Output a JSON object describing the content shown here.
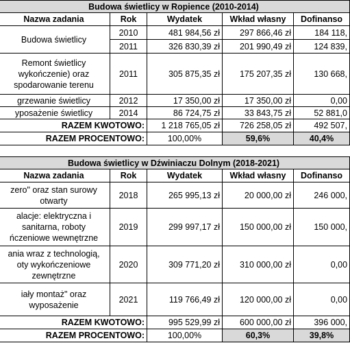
{
  "tables": [
    {
      "title": "Budowa świetlicy w Ropience (2010-2014)",
      "header": [
        "Nazwa zadania",
        "Rok",
        "Wydatek",
        "Wkład własny",
        "Dofinanso"
      ],
      "rows": [
        {
          "name": [
            "Budowa świetlicy"
          ],
          "span": 2,
          "year": "2010",
          "expense": "481 984,56 zł",
          "own": "297 866,46 zł",
          "cofund": "184 118,"
        },
        {
          "year": "2011",
          "expense": "326 830,39 zł",
          "own": "201 990,49 zł",
          "cofund": "124 839,"
        },
        {
          "name": [
            "Remont świetlicy",
            "wykończenie) oraz",
            "spodarowanie terenu"
          ],
          "span": 1,
          "year": "2011",
          "expense": "305 875,35 zł",
          "own": "175 207,35 zł",
          "cofund": "130 668,"
        },
        {
          "name": [
            "grzewanie świetlicy"
          ],
          "span": 1,
          "year": "2012",
          "expense": "17 350,00 zł",
          "own": "17 350,00 zł",
          "cofund": "0,00"
        },
        {
          "name": [
            "yposażenie świetlicy"
          ],
          "span": 1,
          "year": "2014",
          "expense": "86 724,75 zł",
          "own": "33 843,75 zł",
          "cofund": "52 881,0"
        }
      ],
      "total_amount": {
        "label": "RAZEM KWOTOWO:",
        "expense": "1 218 765,05 zł",
        "own": "726 258,05 zł",
        "cofund": "492 507,"
      },
      "total_percent": {
        "label": "RAZEM PROCENTOWO:",
        "expense": "100,00%",
        "own": "59,6%",
        "cofund": "40,4%"
      }
    },
    {
      "title": "Budowa świetlicy w Dźwiniaczu Dolnym (2018-2021)",
      "header": [
        "Nazwa zadania",
        "Rok",
        "Wydatek",
        "Wkład własny",
        "Dofinanso"
      ],
      "rows": [
        {
          "name": [
            "zero\" oraz stan surowy",
            "otwarty"
          ],
          "span": 1,
          "year": "2018",
          "expense": "265 995,13 zł",
          "own": "20 000,00 zł",
          "cofund": "246 000,"
        },
        {
          "name": [
            "alacje: elektryczna i",
            "sanitarna, roboty",
            "ńczeniowe wewnętrzne"
          ],
          "span": 1,
          "year": "2019",
          "expense": "299 997,17 zł",
          "own": "150 000,00 zł",
          "cofund": "150 000,"
        },
        {
          "name": [
            "ania wraz z technologią,",
            "oty wykończeniowe",
            "zewnętrzne"
          ],
          "span": 1,
          "year": "2020",
          "expense": "309 771,20 zł",
          "own": "310 000,00 zł",
          "cofund": "0,00"
        },
        {
          "name": [
            "iały montaż\" oraz",
            "wyposażenie"
          ],
          "span": 1,
          "year": "2021",
          "expense": "119 766,49 zł",
          "own": "120 000,00 zł",
          "cofund": "0,00"
        }
      ],
      "total_amount": {
        "label": "RAZEM KWOTOWO:",
        "expense": "995 529,99 zł",
        "own": "600 000,00 zł",
        "cofund": "396 000,"
      },
      "total_percent": {
        "label": "RAZEM PROCENTOWO:",
        "expense": "100,00%",
        "own": "60,3%",
        "cofund": "39,8%"
      }
    }
  ]
}
